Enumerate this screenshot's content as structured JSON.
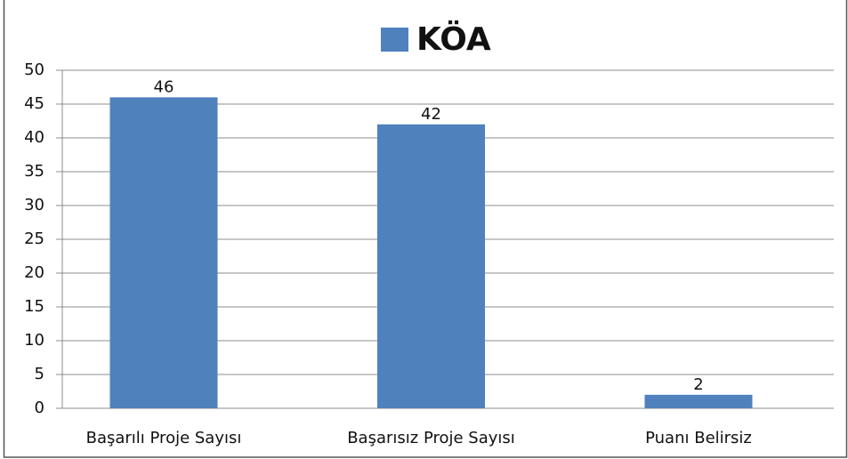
{
  "chart_data": {
    "type": "bar",
    "categories": [
      "Başarılı Proje Sayısı",
      "Başarısız Proje Sayısı",
      "Puanı Belirsiz"
    ],
    "series": [
      {
        "name": "KÖA",
        "color": "#4f81bd",
        "values": [
          46,
          42,
          2
        ]
      }
    ],
    "ylim": [
      0,
      50
    ],
    "yticks": [
      0,
      5,
      10,
      15,
      20,
      25,
      30,
      35,
      40,
      45,
      50
    ],
    "grid": true,
    "legend": "top"
  }
}
